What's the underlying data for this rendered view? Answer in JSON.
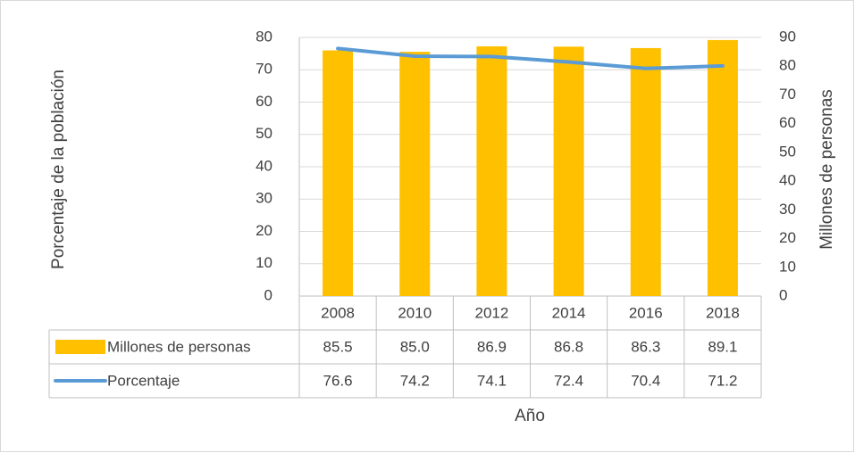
{
  "chart_data": {
    "type": "bar-line",
    "categories": [
      "2008",
      "2010",
      "2012",
      "2014",
      "2016",
      "2018"
    ],
    "series": [
      {
        "name": "Millones de personas",
        "type": "bar",
        "axis": "y2",
        "color": "#FFC000",
        "values": [
          85.5,
          85.0,
          86.9,
          86.8,
          86.3,
          89.1
        ],
        "value_labels": [
          "85.5",
          "85.0",
          "86.9",
          "86.8",
          "86.3",
          "89.1"
        ]
      },
      {
        "name": "Porcentaje",
        "type": "line",
        "axis": "y",
        "color": "#5B9BD5",
        "values": [
          76.6,
          74.2,
          74.1,
          72.4,
          70.4,
          71.2
        ],
        "value_labels": [
          "76.6",
          "74.2",
          "74.1",
          "72.4",
          "70.4",
          "71.2"
        ]
      }
    ],
    "ylabel": "Porcentaje de la población",
    "y2label": "Millones de personas",
    "xlabel": "Año",
    "ylim": [
      0,
      80
    ],
    "yticks": [
      0,
      10,
      20,
      30,
      40,
      50,
      60,
      70,
      80
    ],
    "y2lim": [
      0,
      90
    ],
    "y2ticks": [
      0,
      10,
      20,
      30,
      40,
      50,
      60,
      70,
      80,
      90
    ],
    "grid": true
  }
}
